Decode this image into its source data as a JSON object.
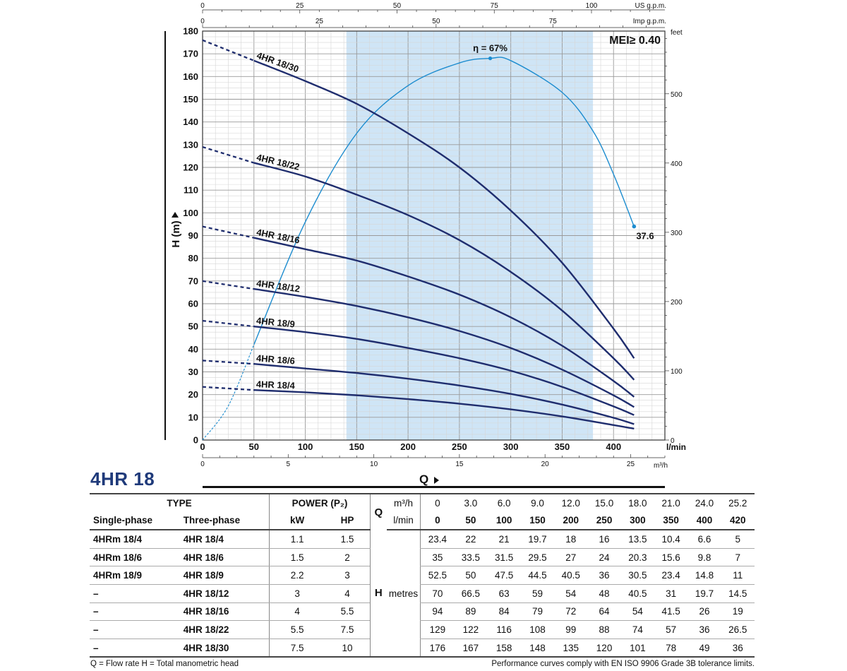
{
  "chart_data": {
    "type": "line",
    "xlabel": "Q",
    "ylabel": "H (m)",
    "x_unit": "l/min",
    "xlim": [
      0,
      450
    ],
    "ylim": [
      0,
      180
    ],
    "x_ticks": [
      0,
      50,
      100,
      150,
      200,
      250,
      300,
      350,
      400
    ],
    "y_ticks": [
      0,
      10,
      20,
      30,
      40,
      50,
      60,
      70,
      80,
      90,
      100,
      110,
      120,
      130,
      140,
      150,
      160,
      170,
      180
    ],
    "secondary_axes": {
      "us_gpm": {
        "label": "US g.p.m.",
        "ticks": [
          0,
          25,
          50,
          75,
          100
        ]
      },
      "imp_gpm": {
        "label": "Imp g.p.m.",
        "ticks": [
          0,
          25,
          50,
          75
        ]
      },
      "feet": {
        "label": "feet",
        "ticks": [
          0,
          100,
          200,
          300,
          400,
          500
        ]
      },
      "m3h": {
        "label": "m³/h",
        "ticks": [
          0,
          5,
          10,
          15,
          20,
          25
        ]
      }
    },
    "recommended_range": [
      140,
      380
    ],
    "mei_label": "MEI≥ 0.40",
    "efficiency": {
      "label": "η = 67%",
      "end_label": "37.6",
      "x": [
        0,
        25,
        50,
        100,
        150,
        200,
        250,
        280,
        300,
        350,
        380,
        400,
        420
      ],
      "y": [
        0,
        15,
        42,
        96,
        135,
        156,
        166,
        168,
        167,
        153,
        136,
        117,
        94
      ]
    },
    "series": [
      {
        "name": "4HR 18/30",
        "x": [
          0,
          50,
          100,
          150,
          200,
          250,
          300,
          350,
          400,
          420
        ],
        "y": [
          176,
          167,
          158,
          148,
          135,
          120,
          101,
          78,
          49,
          36
        ]
      },
      {
        "name": "4HR 18/22",
        "x": [
          0,
          50,
          100,
          150,
          200,
          250,
          300,
          350,
          400,
          420
        ],
        "y": [
          129,
          122,
          116,
          108,
          99,
          88,
          74,
          57,
          36,
          26.5
        ]
      },
      {
        "name": "4HR 18/16",
        "x": [
          0,
          50,
          100,
          150,
          200,
          250,
          300,
          350,
          400,
          420
        ],
        "y": [
          94,
          89,
          84,
          79,
          72,
          64,
          54,
          41.5,
          26,
          19
        ]
      },
      {
        "name": "4HR 18/12",
        "x": [
          0,
          50,
          100,
          150,
          200,
          250,
          300,
          350,
          400,
          420
        ],
        "y": [
          70,
          66.5,
          63,
          59,
          54,
          48,
          40.5,
          31,
          19.7,
          14.5
        ]
      },
      {
        "name": "4HR 18/9",
        "x": [
          0,
          50,
          100,
          150,
          200,
          250,
          300,
          350,
          400,
          420
        ],
        "y": [
          52.5,
          50,
          47.5,
          44.5,
          40.5,
          36,
          30.5,
          23.4,
          14.8,
          11
        ]
      },
      {
        "name": "4HR 18/6",
        "x": [
          0,
          50,
          100,
          150,
          200,
          250,
          300,
          350,
          400,
          420
        ],
        "y": [
          35,
          33.5,
          31.5,
          29.5,
          27,
          24,
          20.3,
          15.6,
          9.8,
          7
        ]
      },
      {
        "name": "4HR 18/4",
        "x": [
          0,
          50,
          100,
          150,
          200,
          250,
          300,
          350,
          400,
          420
        ],
        "y": [
          23.4,
          22,
          21,
          19.7,
          18,
          16,
          13.5,
          10.4,
          6.6,
          5
        ]
      }
    ],
    "colors": {
      "curve": "#1f2d6e",
      "efficiency": "#1c8ccf",
      "band": "#cfe5f6",
      "grid_major": "#9a9a9a",
      "grid_minor": "#d6d6d6"
    }
  },
  "model": "4HR 18",
  "q_axis_label": "Q",
  "table": {
    "h_type": "TYPE",
    "h_power": "POWER (P₂)",
    "h_single": "Single-phase",
    "h_three": "Three-phase",
    "h_kw": "kW",
    "h_hp": "HP",
    "q_symbol": "Q",
    "q_units": [
      "m³/h",
      "l/min"
    ],
    "q_m3h": [
      "0",
      "3.0",
      "6.0",
      "9.0",
      "12.0",
      "15.0",
      "18.0",
      "21.0",
      "24.0",
      "25.2"
    ],
    "q_lmin": [
      "0",
      "50",
      "100",
      "150",
      "200",
      "250",
      "300",
      "350",
      "400",
      "420"
    ],
    "h_symbol": "H",
    "h_unit": "metres",
    "rows": [
      {
        "single": "4HRm 18/4",
        "three": "4HR 18/4",
        "kw": "1.1",
        "hp": "1.5",
        "h": [
          "23.4",
          "22",
          "21",
          "19.7",
          "18",
          "16",
          "13.5",
          "10.4",
          "6.6",
          "5"
        ]
      },
      {
        "single": "4HRm 18/6",
        "three": "4HR 18/6",
        "kw": "1.5",
        "hp": "2",
        "h": [
          "35",
          "33.5",
          "31.5",
          "29.5",
          "27",
          "24",
          "20.3",
          "15.6",
          "9.8",
          "7"
        ]
      },
      {
        "single": "4HRm 18/9",
        "three": "4HR 18/9",
        "kw": "2.2",
        "hp": "3",
        "h": [
          "52.5",
          "50",
          "47.5",
          "44.5",
          "40.5",
          "36",
          "30.5",
          "23.4",
          "14.8",
          "11"
        ]
      },
      {
        "single": "–",
        "three": "4HR 18/12",
        "kw": "3",
        "hp": "4",
        "h": [
          "70",
          "66.5",
          "63",
          "59",
          "54",
          "48",
          "40.5",
          "31",
          "19.7",
          "14.5"
        ]
      },
      {
        "single": "–",
        "three": "4HR 18/16",
        "kw": "4",
        "hp": "5.5",
        "h": [
          "94",
          "89",
          "84",
          "79",
          "72",
          "64",
          "54",
          "41.5",
          "26",
          "19"
        ]
      },
      {
        "single": "–",
        "three": "4HR 18/22",
        "kw": "5.5",
        "hp": "7.5",
        "h": [
          "129",
          "122",
          "116",
          "108",
          "99",
          "88",
          "74",
          "57",
          "36",
          "26.5"
        ]
      },
      {
        "single": "–",
        "three": "4HR 18/30",
        "kw": "7.5",
        "hp": "10",
        "h": [
          "176",
          "167",
          "158",
          "148",
          "135",
          "120",
          "101",
          "78",
          "49",
          "36"
        ]
      }
    ]
  },
  "footnote_left": "Q = Flow rate   H = Total manometric head",
  "footnote_right": "Performance curves comply with EN ISO 9906 Grade 3B tolerance limits."
}
